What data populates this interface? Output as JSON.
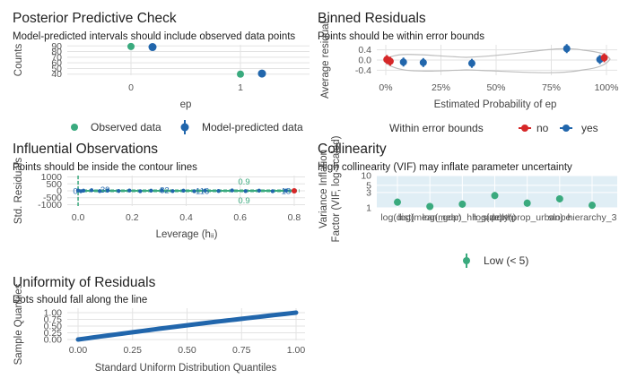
{
  "colors": {
    "teal": "#3AAA7E",
    "blue": "#2166AC",
    "red": "#D62728",
    "grid": "#E3E3E3",
    "band": "#A6CEE3",
    "contour": "#BDBDBD"
  },
  "chart_data": [
    {
      "id": "ppc",
      "type": "scatter",
      "title": "Posterior Predictive Check",
      "subtitle": "Model-predicted intervals should include observed data points",
      "xlabel": "ep",
      "ylabel": "Counts",
      "x_categories": [
        "0",
        "1"
      ],
      "y_ticks": [
        "40",
        "50",
        "60",
        "70",
        "80",
        "90"
      ],
      "ylim": [
        38,
        92
      ],
      "series": [
        {
          "name": "Observed data",
          "color": "#3AAA7E",
          "points": [
            {
              "x": 0,
              "y": 89
            },
            {
              "x": 1,
              "y": 40
            }
          ]
        },
        {
          "name": "Model-predicted data",
          "color": "#2166AC",
          "points": [
            {
              "x": 0,
              "y": 88
            },
            {
              "x": 1,
              "y": 41
            }
          ]
        }
      ],
      "legend": {
        "position": "bottom",
        "items": [
          "Observed data",
          "Model-predicted data"
        ]
      }
    },
    {
      "id": "binned",
      "type": "scatter",
      "title": "Binned Residuals",
      "subtitle": "Points should be within error bounds",
      "xlabel": "Estimated Probability of ep",
      "ylabel": "Average residual",
      "x_ticks": [
        "0%",
        "25%",
        "50%",
        "75%",
        "100%"
      ],
      "y_ticks": [
        "-0.4",
        "0.0",
        "0.4"
      ],
      "xlim": [
        0,
        1
      ],
      "ylim": [
        -0.6,
        0.6
      ],
      "points": [
        {
          "x": 0.005,
          "y": 0.02,
          "group": "no"
        },
        {
          "x": 0.02,
          "y": -0.05,
          "group": "no"
        },
        {
          "x": 0.08,
          "y": -0.08,
          "group": "yes"
        },
        {
          "x": 0.17,
          "y": -0.1,
          "group": "yes"
        },
        {
          "x": 0.39,
          "y": -0.13,
          "group": "yes"
        },
        {
          "x": 0.82,
          "y": 0.45,
          "group": "yes"
        },
        {
          "x": 0.97,
          "y": 0.02,
          "group": "yes"
        },
        {
          "x": 0.99,
          "y": 0.09,
          "group": "no"
        }
      ],
      "legend": {
        "position": "bottom",
        "title": "Within error bounds",
        "items": [
          "no",
          "yes"
        ]
      }
    },
    {
      "id": "influential",
      "type": "scatter",
      "title": "Influential Observations",
      "subtitle": "Points should be inside the contour lines",
      "xlabel": "Leverage (hᵢᵢ)",
      "ylabel": "Std. Residuals",
      "x_ticks": [
        "0.0",
        "0.2",
        "0.4",
        "0.6",
        "0.8"
      ],
      "y_ticks": [
        "1000",
        "500",
        "0",
        "-500",
        "-1000"
      ],
      "xlim": [
        -0.04,
        0.84
      ],
      "ylim": [
        -1100,
        1100
      ],
      "contour_labels": [
        "0.9",
        "0.9"
      ],
      "points": [
        {
          "x": 0.0,
          "y": 20
        },
        {
          "x": 0.01,
          "y": -30
        },
        {
          "x": 0.02,
          "y": 10
        },
        {
          "x": 0.05,
          "y": 40
        },
        {
          "x": 0.08,
          "y": -20
        },
        {
          "x": 0.11,
          "y": 30
        },
        {
          "x": 0.15,
          "y": -10
        },
        {
          "x": 0.19,
          "y": 20
        },
        {
          "x": 0.23,
          "y": -30
        },
        {
          "x": 0.27,
          "y": 10
        },
        {
          "x": 0.31,
          "y": 40
        },
        {
          "x": 0.35,
          "y": -20
        },
        {
          "x": 0.39,
          "y": 10
        },
        {
          "x": 0.43,
          "y": -30
        },
        {
          "x": 0.47,
          "y": 20
        },
        {
          "x": 0.52,
          "y": -10
        },
        {
          "x": 0.57,
          "y": 30
        },
        {
          "x": 0.62,
          "y": -20
        },
        {
          "x": 0.67,
          "y": 10
        },
        {
          "x": 0.72,
          "y": -30
        },
        {
          "x": 0.77,
          "y": 20
        }
      ],
      "flagged": {
        "x": 0.8,
        "y": 0
      },
      "point_labels": [
        {
          "text": "0",
          "x": -0.01,
          "y": -40
        },
        {
          "text": "39",
          "x": 0.1,
          "y": 60
        },
        {
          "text": "82",
          "x": 0.32,
          "y": 20
        },
        {
          "text": "116",
          "x": 0.46,
          "y": -40
        },
        {
          "text": "18",
          "x": 0.77,
          "y": -40
        }
      ]
    },
    {
      "id": "collinearity",
      "type": "scatter",
      "title": "Collinearity",
      "subtitle": "High collinearity (VIF) may inflate parameter uncertainty",
      "ylabel": "Variance Inflation Factor (VIF, log-scaled)",
      "y_ticks": [
        "10",
        "5",
        "3",
        "1"
      ],
      "ylim": [
        1,
        10
      ],
      "categories": [
        "log(dist)",
        "log(mean_gdp)",
        "log(mean_hh_size)",
        "log(depth)",
        "poly(prop_urban)",
        "slope",
        "hierarchy_3"
      ],
      "values": [
        1.5,
        1.1,
        1.3,
        2.4,
        1.4,
        1.9,
        1.2
      ],
      "legend": {
        "position": "bottom",
        "items": [
          "Low (< 5)"
        ]
      }
    },
    {
      "id": "uniformity",
      "type": "line",
      "title": "Uniformity of Residuals",
      "subtitle": "Dots should fall along the line",
      "xlabel": "Standard Uniform Distribution Quantiles",
      "ylabel": "Sample Quantiles",
      "x_ticks": [
        "0.00",
        "0.25",
        "0.50",
        "0.75",
        "1.00"
      ],
      "y_ticks": [
        "0.00",
        "0.25",
        "0.50",
        "0.75",
        "1.00"
      ],
      "xlim": [
        0,
        1
      ],
      "ylim": [
        0,
        1
      ]
    }
  ]
}
